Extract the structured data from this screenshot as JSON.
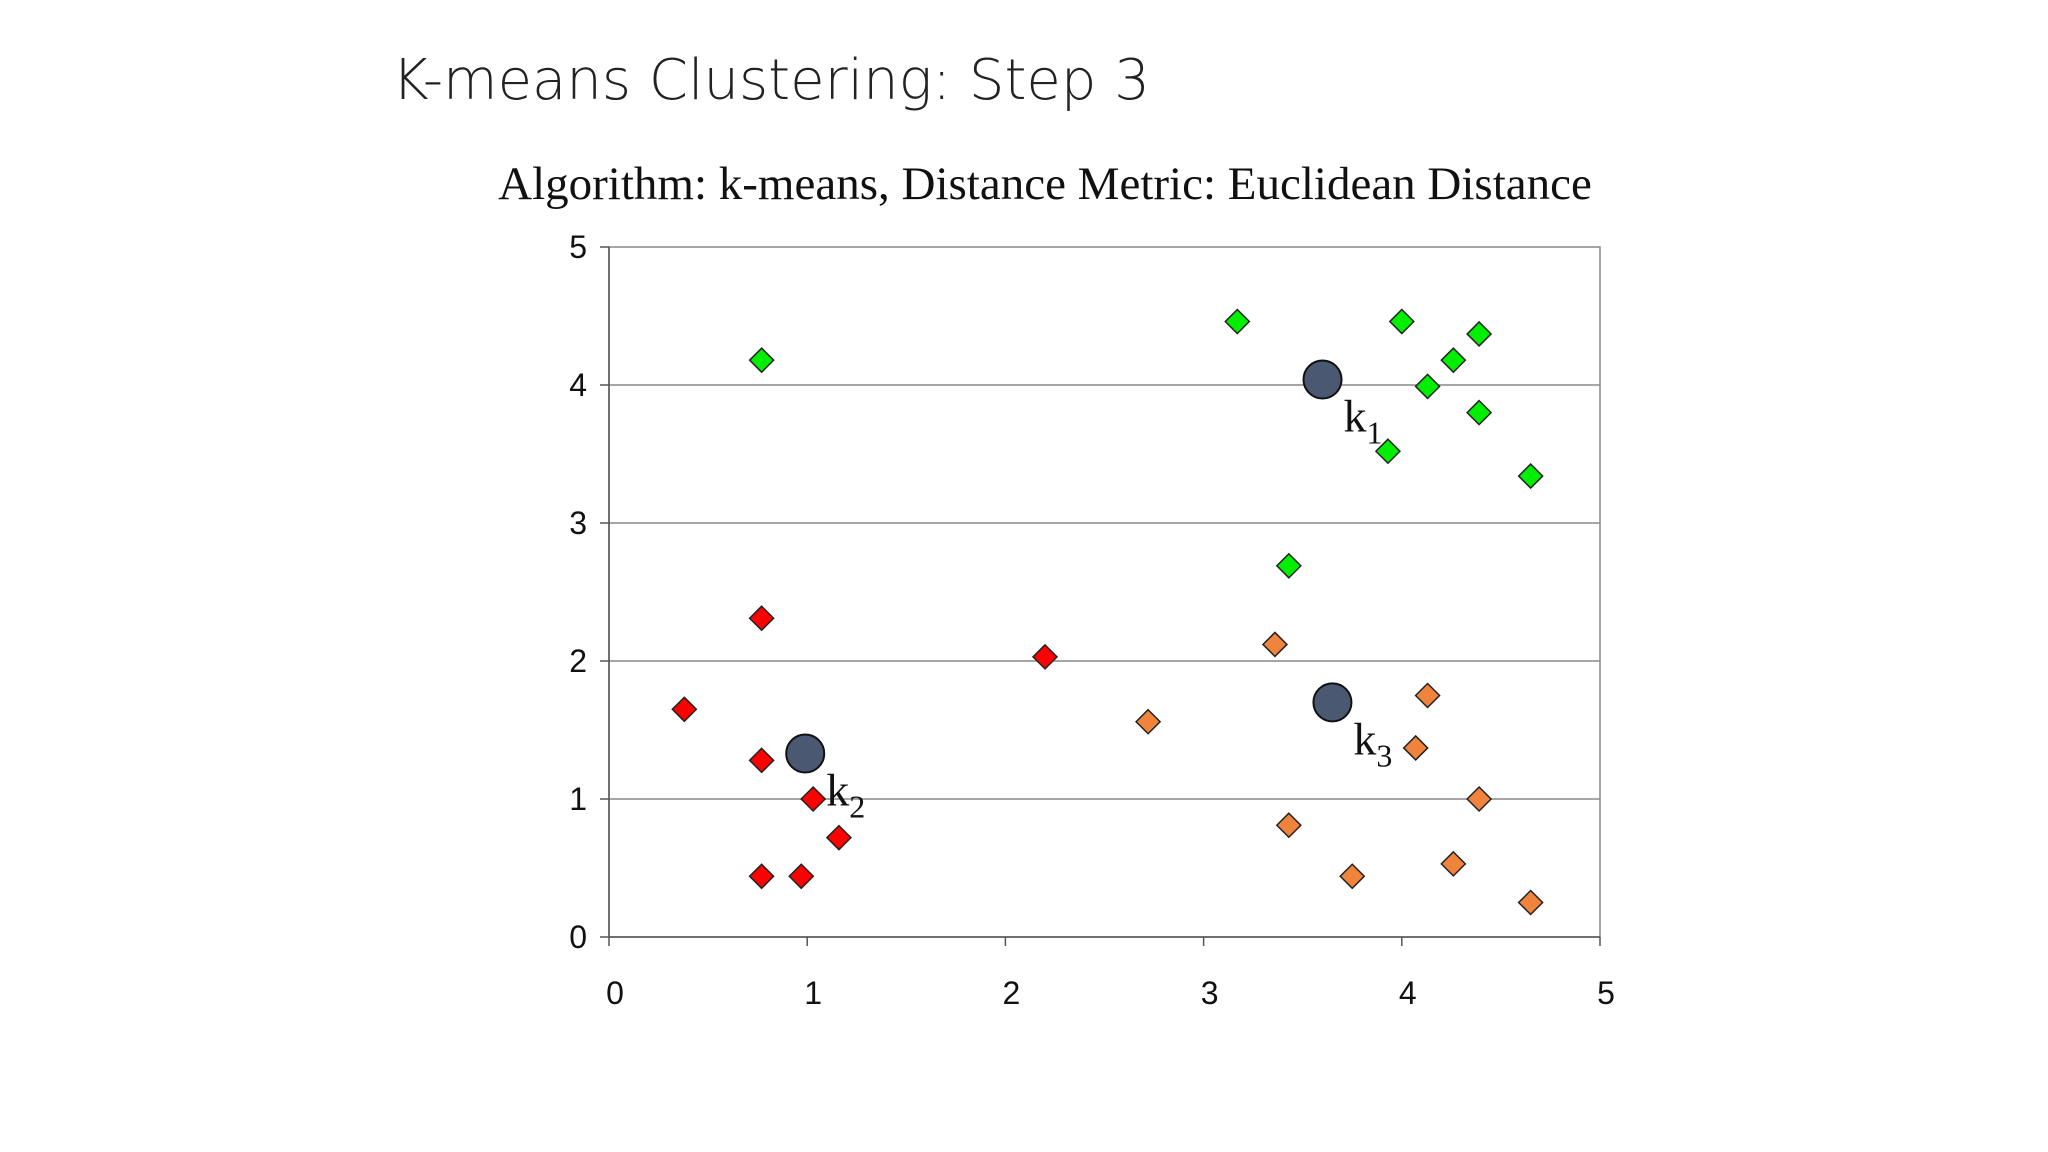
{
  "slide": {
    "title": "K-means Clustering: Step 3"
  },
  "chart_data": {
    "type": "scatter",
    "title": "Algorithm: k-means, Distance Metric: Euclidean Distance",
    "xlabel": "",
    "ylabel": "",
    "xlim": [
      0,
      5
    ],
    "ylim": [
      0,
      5
    ],
    "xticks": [
      0,
      1,
      2,
      3,
      4,
      5
    ],
    "yticks": [
      0,
      1,
      2,
      3,
      4,
      5
    ],
    "grid": "horizontal",
    "marker": "diamond",
    "series": [
      {
        "color": "#00ee00",
        "points": [
          [
            0.77,
            4.18
          ],
          [
            3.17,
            4.46
          ],
          [
            4.0,
            4.46
          ],
          [
            4.39,
            4.37
          ],
          [
            4.26,
            4.18
          ],
          [
            4.13,
            3.99
          ],
          [
            4.39,
            3.8
          ],
          [
            3.93,
            3.52
          ],
          [
            4.65,
            3.34
          ],
          [
            3.43,
            2.69
          ]
        ]
      },
      {
        "color": "#ff0000",
        "points": [
          [
            0.77,
            2.31
          ],
          [
            2.2,
            2.03
          ],
          [
            0.38,
            1.65
          ],
          [
            0.77,
            1.28
          ],
          [
            1.03,
            1.0
          ],
          [
            1.16,
            0.72
          ],
          [
            0.77,
            0.44
          ],
          [
            0.97,
            0.44
          ]
        ]
      },
      {
        "color": "#f0843c",
        "points": [
          [
            3.36,
            2.12
          ],
          [
            2.72,
            1.56
          ],
          [
            4.13,
            1.75
          ],
          [
            4.07,
            1.37
          ],
          [
            4.39,
            1.0
          ],
          [
            3.43,
            0.81
          ],
          [
            3.75,
            0.44
          ],
          [
            4.26,
            0.53
          ],
          [
            4.65,
            0.25
          ]
        ]
      }
    ],
    "centroids": [
      {
        "label": "k",
        "subscript": "1",
        "x": 3.6,
        "y": 4.04,
        "color": "#4a5872"
      },
      {
        "label": "k",
        "subscript": "2",
        "x": 0.99,
        "y": 1.33,
        "color": "#4a5872"
      },
      {
        "label": "k",
        "subscript": "3",
        "x": 3.65,
        "y": 1.7,
        "color": "#4a5872"
      }
    ]
  }
}
